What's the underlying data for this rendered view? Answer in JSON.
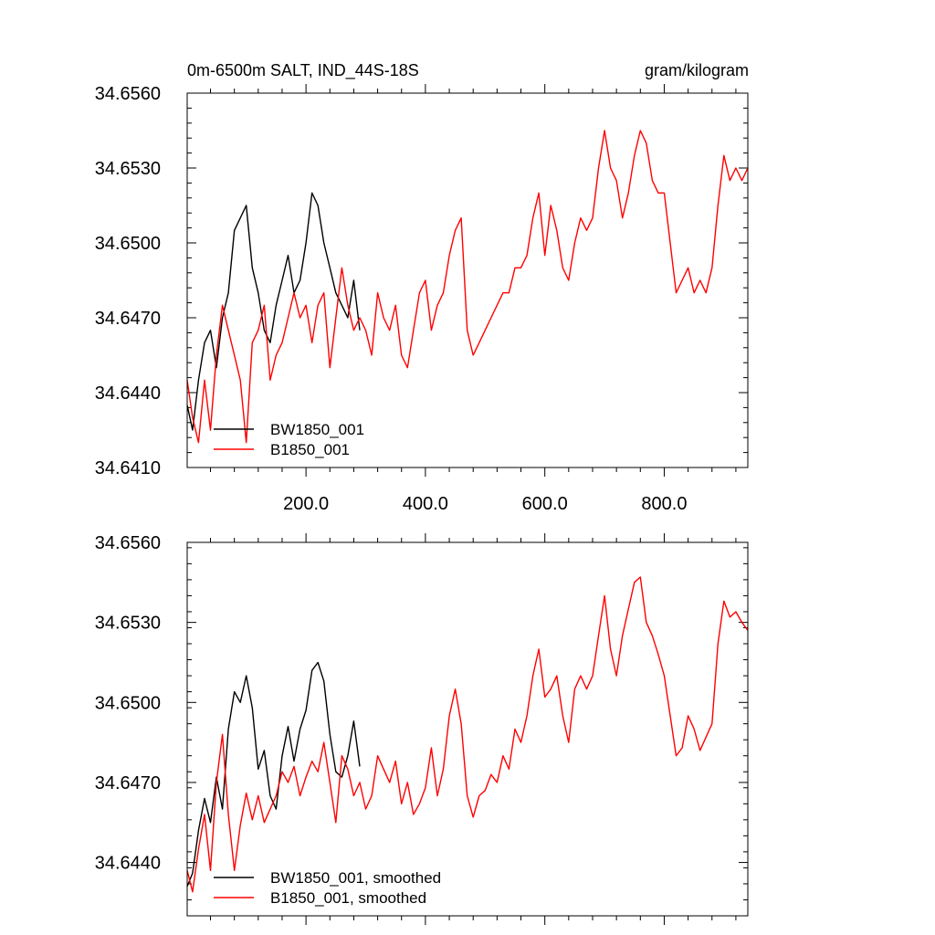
{
  "colors": {
    "black_series": "#000000",
    "red_series": "#ff0000"
  },
  "chart_data": [
    {
      "type": "line",
      "title_left": "0m-6500m SALT, IND_44S-18S",
      "title_right": "gram/kilogram",
      "xlim": [
        1,
        940
      ],
      "ylim": [
        34.641,
        34.656
      ],
      "x_ticks": [
        200,
        400,
        600,
        800
      ],
      "x_tick_labels": [
        "200.0",
        "400.0",
        "600.0",
        "800.0"
      ],
      "y_ticks": [
        34.641,
        34.644,
        34.647,
        34.65,
        34.653,
        34.656
      ],
      "y_tick_labels": [
        "34.6410",
        "34.6440",
        "34.6470",
        "34.6500",
        "34.6530",
        "34.6560"
      ],
      "legend": [
        "BW1850_001",
        "B1850_001"
      ],
      "series": [
        {
          "name": "BW1850_001",
          "color": "#000000",
          "x": [
            1,
            10,
            20,
            30,
            40,
            50,
            60,
            70,
            80,
            90,
            100,
            110,
            120,
            130,
            140,
            150,
            160,
            170,
            180,
            190,
            200,
            210,
            220,
            230,
            240,
            250,
            260,
            270,
            280,
            290
          ],
          "y": [
            34.6435,
            34.6425,
            34.6445,
            34.646,
            34.6465,
            34.645,
            34.647,
            34.648,
            34.6505,
            34.651,
            34.6515,
            34.649,
            34.648,
            34.6465,
            34.646,
            34.6475,
            34.6485,
            34.6495,
            34.648,
            34.6485,
            34.65,
            34.652,
            34.6515,
            34.65,
            34.649,
            34.648,
            34.6475,
            34.647,
            34.6485,
            34.6465
          ]
        },
        {
          "name": "B1850_001",
          "color": "#ff0000",
          "x": [
            1,
            10,
            20,
            30,
            40,
            50,
            60,
            70,
            80,
            90,
            100,
            110,
            120,
            130,
            140,
            150,
            160,
            170,
            180,
            190,
            200,
            210,
            220,
            230,
            240,
            250,
            260,
            270,
            280,
            290,
            300,
            310,
            320,
            330,
            340,
            350,
            360,
            370,
            380,
            390,
            400,
            410,
            420,
            430,
            440,
            450,
            460,
            470,
            480,
            490,
            500,
            510,
            520,
            530,
            540,
            550,
            560,
            570,
            580,
            590,
            600,
            610,
            620,
            630,
            640,
            650,
            660,
            670,
            680,
            690,
            700,
            710,
            720,
            730,
            740,
            750,
            760,
            770,
            780,
            790,
            800,
            810,
            820,
            830,
            840,
            850,
            860,
            870,
            880,
            890,
            900,
            910,
            920,
            930,
            940
          ],
          "y": [
            34.6445,
            34.643,
            34.642,
            34.6445,
            34.6425,
            34.6455,
            34.6475,
            34.6465,
            34.6455,
            34.6445,
            34.642,
            34.646,
            34.6465,
            34.6475,
            34.6445,
            34.6455,
            34.646,
            34.647,
            34.648,
            34.647,
            34.6475,
            34.646,
            34.6475,
            34.648,
            34.645,
            34.647,
            34.649,
            34.6475,
            34.6465,
            34.647,
            34.6465,
            34.6455,
            34.648,
            34.647,
            34.6465,
            34.6475,
            34.6455,
            34.645,
            34.6465,
            34.648,
            34.6485,
            34.6465,
            34.6475,
            34.648,
            34.6495,
            34.6505,
            34.651,
            34.6465,
            34.6455,
            34.646,
            34.6465,
            34.647,
            34.6475,
            34.648,
            34.648,
            34.649,
            34.649,
            34.6495,
            34.651,
            34.652,
            34.6495,
            34.6515,
            34.6505,
            34.649,
            34.6485,
            34.65,
            34.651,
            34.6505,
            34.651,
            34.653,
            34.6545,
            34.653,
            34.6525,
            34.651,
            34.652,
            34.6535,
            34.6545,
            34.654,
            34.6525,
            34.652,
            34.652,
            34.65,
            34.648,
            34.6485,
            34.649,
            34.648,
            34.6485,
            34.648,
            34.649,
            34.6515,
            34.6535,
            34.6525,
            34.653,
            34.6525,
            34.653
          ]
        }
      ]
    },
    {
      "type": "line",
      "xlim": [
        1,
        940
      ],
      "ylim": [
        34.642,
        34.656
      ],
      "y_ticks": [
        34.644,
        34.647,
        34.65,
        34.653,
        34.656
      ],
      "y_tick_labels": [
        "34.6440",
        "34.6470",
        "34.6500",
        "34.6530",
        "34.6560"
      ],
      "legend": [
        "BW1850_001, smoothed",
        "B1850_001, smoothed"
      ],
      "series": [
        {
          "name": "BW1850_001, smoothed",
          "color": "#000000",
          "x": [
            1,
            10,
            20,
            30,
            40,
            50,
            60,
            70,
            80,
            90,
            100,
            110,
            120,
            130,
            140,
            150,
            160,
            170,
            180,
            190,
            200,
            210,
            220,
            230,
            240,
            250,
            260,
            270,
            280,
            290
          ],
          "y": [
            34.6431,
            34.6436,
            34.6452,
            34.6464,
            34.6455,
            34.6472,
            34.646,
            34.649,
            34.6504,
            34.65,
            34.651,
            34.6498,
            34.6475,
            34.6482,
            34.6465,
            34.646,
            34.648,
            34.6491,
            34.6478,
            34.649,
            34.6497,
            34.6512,
            34.6515,
            34.6508,
            34.6488,
            34.6474,
            34.6472,
            34.648,
            34.6493,
            34.6476
          ]
        },
        {
          "name": "B1850_001, smoothed",
          "color": "#ff0000",
          "x": [
            1,
            10,
            20,
            30,
            40,
            50,
            60,
            70,
            80,
            90,
            100,
            110,
            120,
            130,
            140,
            150,
            160,
            170,
            180,
            190,
            200,
            210,
            220,
            230,
            240,
            250,
            260,
            270,
            280,
            290,
            300,
            310,
            320,
            330,
            340,
            350,
            360,
            370,
            380,
            390,
            400,
            410,
            420,
            430,
            440,
            450,
            460,
            470,
            480,
            490,
            500,
            510,
            520,
            530,
            540,
            550,
            560,
            570,
            580,
            590,
            600,
            610,
            620,
            630,
            640,
            650,
            660,
            670,
            680,
            690,
            700,
            710,
            720,
            730,
            740,
            750,
            760,
            770,
            780,
            790,
            800,
            810,
            820,
            830,
            840,
            850,
            860,
            870,
            880,
            890,
            900,
            910,
            920,
            930,
            940
          ],
          "y": [
            34.6437,
            34.6429,
            34.6445,
            34.6458,
            34.6437,
            34.647,
            34.6488,
            34.6458,
            34.6437,
            34.6454,
            34.6466,
            34.6456,
            34.6465,
            34.6455,
            34.646,
            34.6465,
            34.6474,
            34.647,
            34.6476,
            34.6465,
            34.6472,
            34.6478,
            34.6474,
            34.6485,
            34.647,
            34.6455,
            34.648,
            34.6475,
            34.6465,
            34.647,
            34.646,
            34.6465,
            34.648,
            34.6475,
            34.647,
            34.6478,
            34.6462,
            34.647,
            34.6458,
            34.6462,
            34.6468,
            34.6483,
            34.6465,
            34.6475,
            34.6495,
            34.6505,
            34.6492,
            34.6465,
            34.6457,
            34.6465,
            34.6467,
            34.6473,
            34.647,
            34.648,
            34.6475,
            34.649,
            34.6485,
            34.6495,
            34.651,
            34.652,
            34.6502,
            34.6505,
            34.651,
            34.6495,
            34.6485,
            34.6505,
            34.651,
            34.6505,
            34.651,
            34.6525,
            34.654,
            34.652,
            34.651,
            34.6525,
            34.6535,
            34.6545,
            34.6547,
            34.653,
            34.6525,
            34.6518,
            34.651,
            34.6495,
            34.648,
            34.6483,
            34.6495,
            34.649,
            34.6482,
            34.6487,
            34.6492,
            34.6522,
            34.6538,
            34.6532,
            34.6534,
            34.653,
            34.6527
          ]
        }
      ]
    }
  ]
}
